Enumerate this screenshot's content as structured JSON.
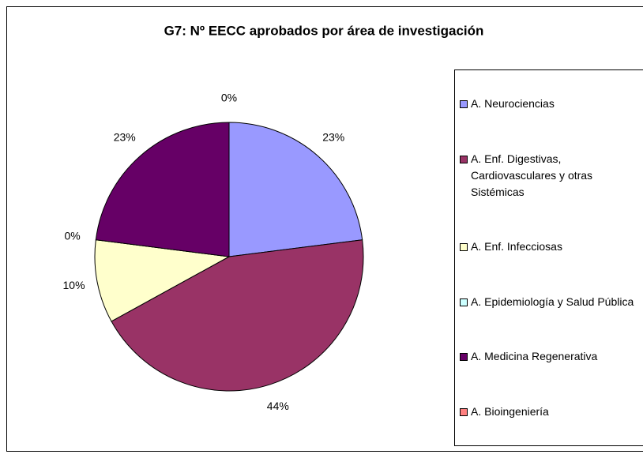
{
  "chart_data": {
    "type": "pie",
    "title": "G7: Nº EECC aprobados por área de investigación",
    "categories": [
      "A. Neurociencias",
      "A. Enf. Digestivas, Cardiovasculares y otras Sistémicas",
      "A. Enf. Infecciosas",
      "A. Epidemiología y Salud Pública",
      "A. Medicina Regenerativa",
      "A. Bioingeniería"
    ],
    "values": [
      23,
      44,
      10,
      0,
      23,
      0
    ],
    "value_labels": [
      "23%",
      "44%",
      "10%",
      "0%",
      "23%",
      "0%"
    ],
    "colors": [
      "#9999ff",
      "#993366",
      "#ffffcc",
      "#ccffff",
      "#660066",
      "#ff8080"
    ],
    "legend": "right"
  }
}
